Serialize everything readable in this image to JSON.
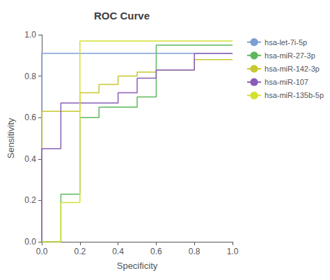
{
  "chart_data": {
    "type": "line",
    "title": "ROC Curve",
    "x_label": "Specificity",
    "y_label": "Sensitivity",
    "xlim": [
      0.0,
      1.0
    ],
    "ylim": [
      0.0,
      1.0
    ],
    "xticks": [
      {
        "value": 0.0,
        "label": "0.0"
      },
      0.2,
      0.4,
      0.6,
      0.8,
      {
        "value": 1.0,
        "label": "1.0"
      }
    ],
    "yticks": [
      {
        "value": 0.0,
        "label": "0.0"
      },
      0.2,
      0.4,
      0.6,
      0.8,
      {
        "value": 1.0,
        "label": "1.0"
      }
    ],
    "grid": false,
    "legend": "right",
    "series": [
      {
        "name": "hsa-let-7i-5p",
        "color": "#7b9fd4",
        "x": [
          0.0,
          0.0,
          0.1,
          1.0
        ],
        "values": [
          0.0,
          0.91,
          0.91,
          0.91
        ]
      },
      {
        "name": "hsa-miR-27-3p",
        "color": "#5cb85c",
        "x": [
          0.0,
          0.1,
          0.1,
          0.2,
          0.2,
          0.3,
          0.3,
          0.5,
          0.5,
          0.6,
          0.6,
          1.0
        ],
        "values": [
          0.0,
          0.0,
          0.23,
          0.23,
          0.6,
          0.6,
          0.65,
          0.65,
          0.7,
          0.7,
          0.95,
          0.95
        ]
      },
      {
        "name": "hsa-miR-142-3p",
        "color": "#c8c830",
        "x": [
          0.0,
          0.0,
          0.2,
          0.2,
          0.3,
          0.3,
          0.4,
          0.4,
          0.5,
          0.5,
          0.6,
          0.6,
          0.8,
          0.8,
          1.0
        ],
        "values": [
          0.0,
          0.63,
          0.63,
          0.72,
          0.72,
          0.76,
          0.76,
          0.8,
          0.8,
          0.82,
          0.82,
          0.83,
          0.83,
          0.88,
          0.88
        ]
      },
      {
        "name": "hsa-miR-107",
        "color": "#8a5cb8",
        "x": [
          0.0,
          0.0,
          0.1,
          0.1,
          0.4,
          0.4,
          0.5,
          0.5,
          0.6,
          0.6,
          0.8,
          0.8,
          1.0
        ],
        "values": [
          0.0,
          0.45,
          0.45,
          0.67,
          0.67,
          0.72,
          0.72,
          0.79,
          0.79,
          0.83,
          0.83,
          0.91,
          0.91
        ]
      },
      {
        "name": "hsa-miR-135b-5p",
        "color": "#d4e030",
        "x": [
          0.0,
          0.1,
          0.1,
          0.2,
          0.2,
          0.8,
          0.8,
          1.0
        ],
        "values": [
          0.0,
          0.0,
          0.19,
          0.19,
          0.97,
          0.97,
          0.97,
          0.97
        ]
      }
    ]
  }
}
